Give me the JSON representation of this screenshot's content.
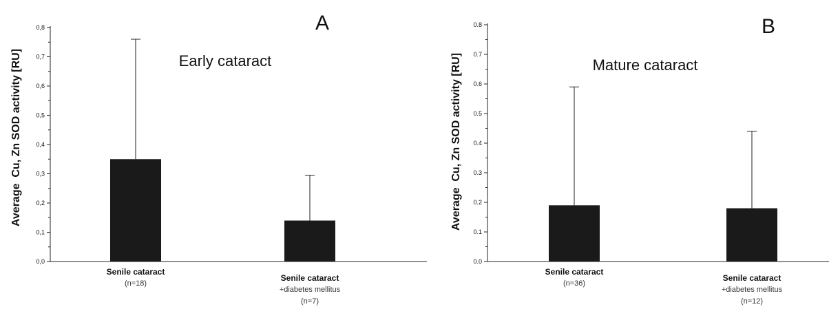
{
  "chart_data": [
    {
      "type": "bar",
      "panel_letter": "A",
      "title": "Early cataract",
      "ylabel": "Average  Cu, Zn SOD activity [RU]",
      "ylim": [
        0,
        0.8
      ],
      "yticks": [
        "0,0",
        "0,1",
        "0,2",
        "0,3",
        "0,4",
        "0,5",
        "0,6",
        "0,7",
        "0,8"
      ],
      "categories": [
        {
          "label": "Senile cataract",
          "sub": [
            "(n=18)"
          ]
        },
        {
          "label": "Senile cataract",
          "sub": [
            "+diabetes mellitus",
            "(n=7)"
          ]
        }
      ],
      "values": [
        0.35,
        0.14
      ],
      "error_upper": [
        0.76,
        0.295
      ],
      "bar_color": "#1a1a1a"
    },
    {
      "type": "bar",
      "panel_letter": "B",
      "title": "Mature cataract",
      "ylabel": "Average  Cu, Zn SOD activity [RU]",
      "ylim": [
        0,
        0.8
      ],
      "yticks": [
        "0.0",
        "0.1",
        "0.2",
        "0.3",
        "0.4",
        "0.5",
        "0.6",
        "0.7",
        "0.8"
      ],
      "categories": [
        {
          "label": "Senile cataract",
          "sub": [
            "(n=36)"
          ]
        },
        {
          "label": "Senile cataract",
          "sub": [
            "+diabetes mellitus",
            "(n=12)"
          ]
        }
      ],
      "values": [
        0.19,
        0.18
      ],
      "error_upper": [
        0.59,
        0.44
      ],
      "bar_color": "#1a1a1a"
    }
  ]
}
